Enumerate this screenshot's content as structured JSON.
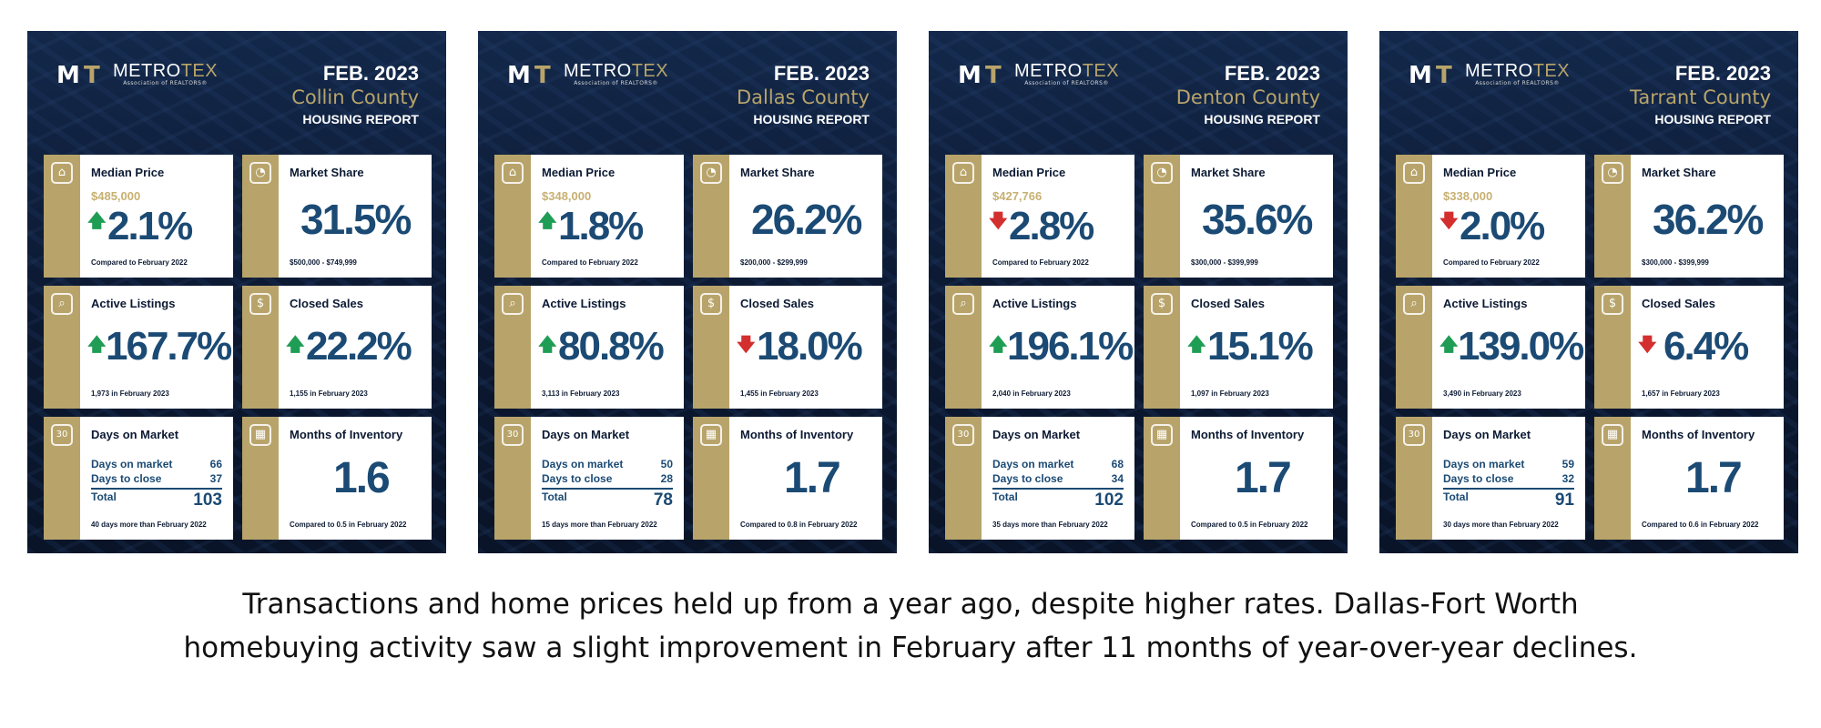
{
  "brand": {
    "metro": "METRO",
    "tex": "TEX",
    "assoc": "Association of REALTORS®",
    "mark_m": "M",
    "mark_t": "T"
  },
  "labels": {
    "median_price": "Median Price",
    "market_share": "Market Share",
    "active_listings": "Active Listings",
    "closed_sales": "Closed Sales",
    "days_on_market": "Days on Market",
    "months_inventory": "Months of Inventory",
    "dom_line": "Days on market",
    "close_line": "Days to close",
    "total": "Total",
    "compared_feb": "Compared to February 2022",
    "housing_report": "HOUSING REPORT",
    "cal_num": "30"
  },
  "colors": {
    "navy": "#0c1a33",
    "gold": "#b8a46a",
    "blue": "#1b4a74",
    "up": "#1f9d55",
    "down": "#d32f2f"
  },
  "reports": [
    {
      "date": "FEB. 2023",
      "county": "Collin County",
      "median_price": "$485,000",
      "median_change": "2.1%",
      "median_dir": "up",
      "market_share": "31.5%",
      "market_share_range": "$500,000 - $749,999",
      "active_listings": "167.7%",
      "active_dir": "up",
      "active_sub": "1,973 in February 2023",
      "closed_sales": "22.2%",
      "closed_dir": "up",
      "closed_sub": "1,155 in February 2023",
      "days_on_market": "66",
      "days_to_close": "37",
      "total": "103",
      "dom_sub": "40 days more than February 2022",
      "months_inventory": "1.6",
      "moi_sub": "Compared to 0.5 in February 2022"
    },
    {
      "date": "FEB. 2023",
      "county": "Dallas County",
      "median_price": "$348,000",
      "median_change": "1.8%",
      "median_dir": "up",
      "market_share": "26.2%",
      "market_share_range": "$200,000 - $299,999",
      "active_listings": "80.8%",
      "active_dir": "up",
      "active_sub": "3,113 in February 2023",
      "closed_sales": "18.0%",
      "closed_dir": "down",
      "closed_sub": "1,455 in February 2023",
      "days_on_market": "50",
      "days_to_close": "28",
      "total": "78",
      "dom_sub": "15 days more than February 2022",
      "months_inventory": "1.7",
      "moi_sub": "Compared to 0.8 in February 2022"
    },
    {
      "date": "FEB. 2023",
      "county": "Denton County",
      "median_price": "$427,766",
      "median_change": "2.8%",
      "median_dir": "down",
      "market_share": "35.6%",
      "market_share_range": "$300,000 - $399,999",
      "active_listings": "196.1%",
      "active_dir": "up",
      "active_sub": "2,040 in February 2023",
      "closed_sales": "15.1%",
      "closed_dir": "up",
      "closed_sub": "1,097 in February 2023",
      "days_on_market": "68",
      "days_to_close": "34",
      "total": "102",
      "dom_sub": "35 days more than February 2022",
      "months_inventory": "1.7",
      "moi_sub": "Compared to 0.5 in February 2022"
    },
    {
      "date": "FEB. 2023",
      "county": "Tarrant County",
      "median_price": "$338,000",
      "median_change": "2.0%",
      "median_dir": "down",
      "market_share": "36.2%",
      "market_share_range": "$300,000 - $399,999",
      "active_listings": "139.0%",
      "active_dir": "up",
      "active_sub": "3,490 in February 2023",
      "closed_sales": "6.4%",
      "closed_dir": "down",
      "closed_sub": "1,657 in February 2023",
      "days_on_market": "59",
      "days_to_close": "32",
      "total": "91",
      "dom_sub": "30 days more than February 2022",
      "months_inventory": "1.7",
      "moi_sub": "Compared to 0.6 in February 2022"
    }
  ],
  "caption": {
    "line1": "Transactions and home prices held up from a year ago, despite higher rates. Dallas-Fort Worth",
    "line2": "homebuying activity saw a slight improvement in February after 11 months of year-over-year declines."
  }
}
